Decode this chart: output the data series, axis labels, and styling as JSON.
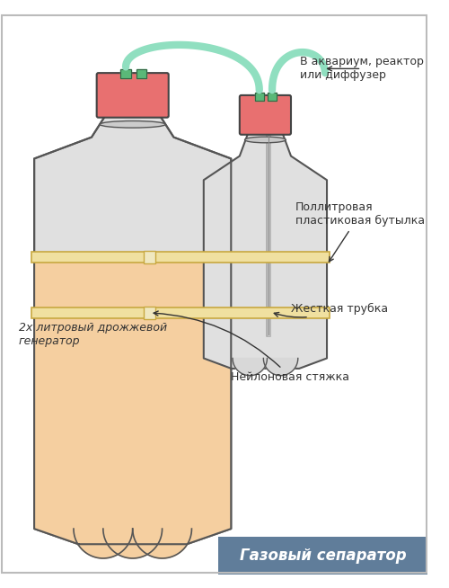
{
  "bg_color": "#ffffff",
  "border_color": "#bbbbbb",
  "bottle1_fill": "#e8e8e8",
  "bottle1_fill_lower": "#f5cfa0",
  "bottle1_stroke": "#555555",
  "bottle2_fill": "#e0e0e0",
  "bottle2_stroke": "#555555",
  "cap_color": "#e87070",
  "cap_stroke": "#444444",
  "tube_color": "#90dfc0",
  "strap_color": "#f0e0a0",
  "strap_stroke": "#c8a840",
  "connector_color": "#5ab878",
  "footer_bg": "#607d9a",
  "footer_text": "Газовый сепаратор",
  "footer_text_color": "#ffffff",
  "label_color": "#333333",
  "ann1_text": "В аквариум, реактор\nили диффузер",
  "ann2_text": "Поллитровая\nпластиковая бутылка",
  "ann3_text": "Жесткая трубка",
  "ann4_text": "Нейлоновая стяжка",
  "ann5_text": "2х литровый дрожжевой\nгенератор"
}
